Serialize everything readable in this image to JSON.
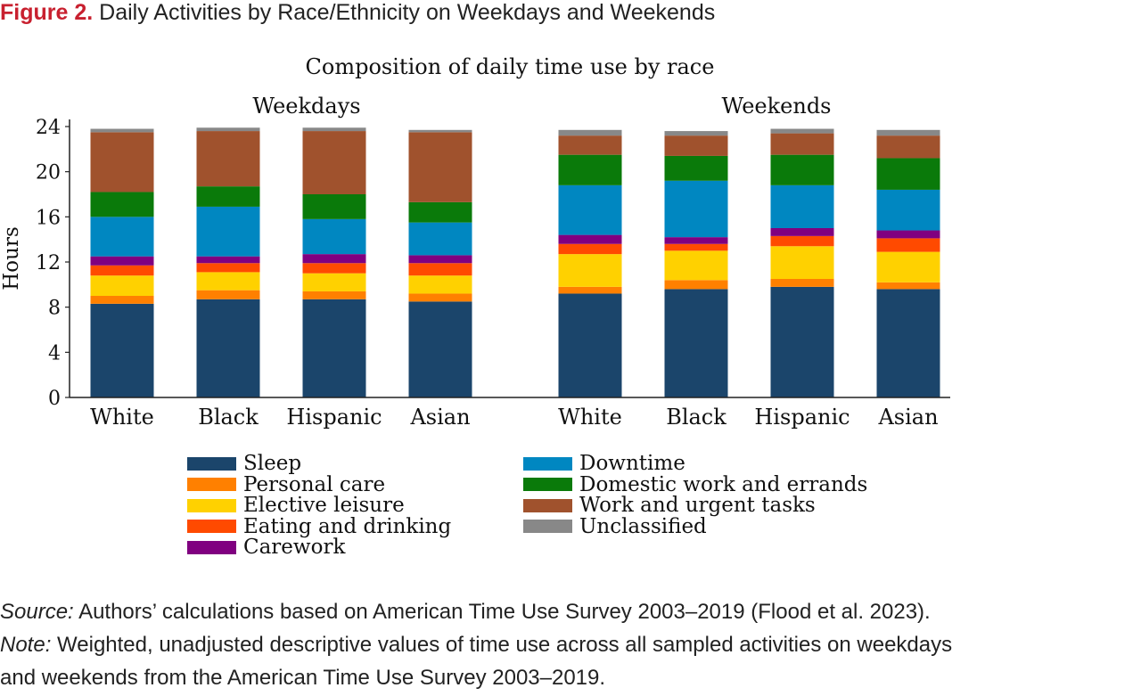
{
  "figure": {
    "label": "Figure 2.",
    "title": "Daily Activities by Race/Ethnicity on Weekdays and Weekends"
  },
  "chart_data": {
    "type": "bar",
    "stacked": true,
    "title": "Composition of daily time use by race",
    "ylabel": "Hours",
    "ylim": [
      0,
      24
    ],
    "yticks": [
      0,
      4,
      8,
      12,
      16,
      20,
      24
    ],
    "grid": false,
    "legend_position": "bottom",
    "panels": [
      {
        "title": "Weekdays",
        "categories": [
          "White",
          "Black",
          "Hispanic",
          "Asian"
        ]
      },
      {
        "title": "Weekends",
        "categories": [
          "White",
          "Black",
          "Hispanic",
          "Asian"
        ]
      }
    ],
    "series": [
      {
        "name": "Sleep",
        "color": "#1b456b",
        "weekdays": [
          8.3,
          8.7,
          8.7,
          8.5
        ],
        "weekends": [
          9.2,
          9.6,
          9.8,
          9.6
        ]
      },
      {
        "name": "Personal care",
        "color": "#ff8000",
        "weekdays": [
          0.7,
          0.8,
          0.7,
          0.7
        ],
        "weekends": [
          0.6,
          0.8,
          0.7,
          0.6
        ]
      },
      {
        "name": "Elective leisure",
        "color": "#ffd100",
        "weekdays": [
          1.8,
          1.6,
          1.6,
          1.6
        ],
        "weekends": [
          2.9,
          2.6,
          2.9,
          2.7
        ]
      },
      {
        "name": "Eating and drinking",
        "color": "#ff4a00",
        "weekdays": [
          0.9,
          0.8,
          0.9,
          1.1
        ],
        "weekends": [
          0.9,
          0.6,
          0.9,
          1.2
        ]
      },
      {
        "name": "Carework",
        "color": "#800080",
        "weekdays": [
          0.8,
          0.6,
          0.8,
          0.7
        ],
        "weekends": [
          0.8,
          0.6,
          0.7,
          0.7
        ]
      },
      {
        "name": "Downtime",
        "color": "#0087c1",
        "weekdays": [
          3.5,
          4.4,
          3.1,
          2.9
        ],
        "weekends": [
          4.4,
          5.0,
          3.8,
          3.6
        ]
      },
      {
        "name": "Domestic work and errands",
        "color": "#0a7a0a",
        "weekdays": [
          2.2,
          1.8,
          2.2,
          1.8
        ],
        "weekends": [
          2.7,
          2.2,
          2.7,
          2.8
        ]
      },
      {
        "name": "Work and urgent tasks",
        "color": "#a0522d",
        "weekdays": [
          5.3,
          4.9,
          5.6,
          6.2
        ],
        "weekends": [
          1.7,
          1.8,
          1.9,
          2.0
        ]
      },
      {
        "name": "Unclassified",
        "color": "#888888",
        "weekdays": [
          0.3,
          0.3,
          0.3,
          0.2
        ],
        "weekends": [
          0.5,
          0.4,
          0.4,
          0.5
        ]
      }
    ]
  },
  "notes": {
    "source_label": "Source:",
    "source_text": " Authors’ calculations based on American Time Use Survey 2003–2019 (Flood et al. 2023).",
    "note_label": "Note:",
    "note_text_1": " Weighted, unadjusted descriptive values of time use across all sampled activities on weekdays",
    "note_text_2": "and weekends from the American Time Use Survey 2003–2019."
  }
}
